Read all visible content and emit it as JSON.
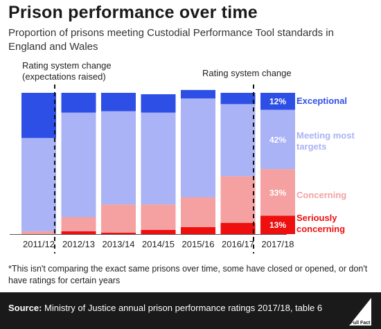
{
  "title": "Prison performance over time",
  "subtitle": "Proportion of prisons meeting Custodial Performance Tool standards in England and Wales",
  "annotations": {
    "change1": [
      "Rating system change",
      "(expectations raised)"
    ],
    "change2": "Rating system change"
  },
  "footnote": "*This isn't comparing the exact same prisons over time, some have closed or opened, or don't have ratings for certain years",
  "footer": {
    "source_label": "Source:",
    "source_text": "Ministry of Justice annual prison performance ratings 2017/18, table 6",
    "logo_text": "Full Fact"
  },
  "colors": {
    "exceptional": "#2e4fe6",
    "meeting": "#a9b3f5",
    "concerning": "#f5a1a1",
    "seriously": "#ee0f0f"
  },
  "chart_data": {
    "type": "bar",
    "stacked": true,
    "categories": [
      "2011/12",
      "2012/13",
      "2013/14",
      "2014/15",
      "2015/16",
      "2016/17",
      "2017/18"
    ],
    "series": [
      {
        "name": "Seriously concerning",
        "values": [
          0,
          2,
          1,
          3,
          5,
          8,
          13
        ]
      },
      {
        "name": "Concerning",
        "values": [
          2,
          10,
          20,
          18,
          21,
          33,
          33
        ]
      },
      {
        "name": "Meeting most targets",
        "values": [
          66,
          74,
          66,
          65,
          70,
          51,
          42
        ]
      },
      {
        "name": "Exceptional",
        "values": [
          32,
          14,
          13,
          13,
          6,
          8,
          12
        ]
      }
    ],
    "legend_labels": {
      "exceptional": "Exceptional",
      "meeting": [
        "Meeting most",
        "targets"
      ],
      "concerning": "Concerning",
      "seriously": [
        "Seriously",
        "concerning"
      ]
    },
    "data_labels_category": "2017/18",
    "data_labels": [
      "13%",
      "33%",
      "42%",
      "12%"
    ],
    "ylim": [
      0,
      100
    ],
    "xlabel": "",
    "ylabel": "",
    "grid": false,
    "legend": "right"
  }
}
